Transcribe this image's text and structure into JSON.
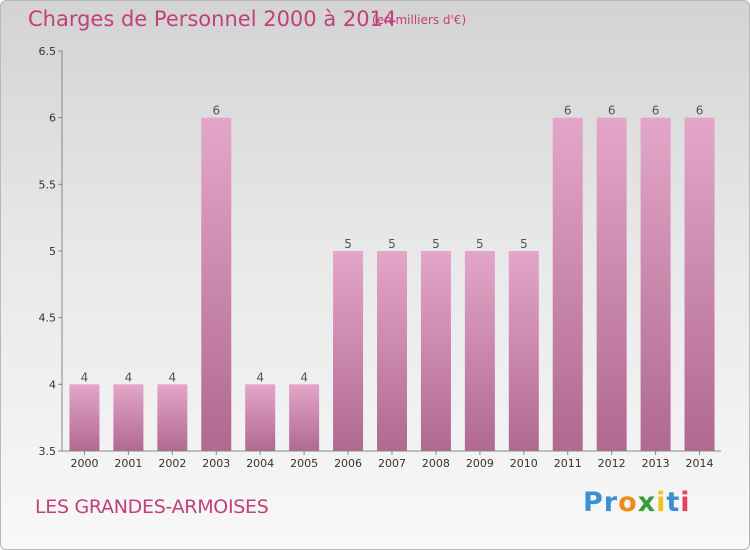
{
  "chart_data": {
    "type": "bar",
    "title": "Charges de Personnel 2000 à 2014",
    "subtitle": "(en milliers d'€)",
    "xlabel": "",
    "ylabel": "",
    "categories": [
      "2000",
      "2001",
      "2002",
      "2003",
      "2004",
      "2005",
      "2006",
      "2007",
      "2008",
      "2009",
      "2010",
      "2011",
      "2012",
      "2013",
      "2014"
    ],
    "values": [
      4,
      4,
      4,
      6,
      4,
      4,
      5,
      5,
      5,
      5,
      5,
      6,
      6,
      6,
      6
    ],
    "data_labels": [
      "4",
      "4",
      "4",
      "6",
      "4",
      "4",
      "5",
      "5",
      "5",
      "5",
      "5",
      "6",
      "6",
      "6",
      "6"
    ],
    "ylim": [
      3.5,
      6.5
    ],
    "yticks": [
      "3.5",
      "4",
      "4.5",
      "5",
      "5.5",
      "6",
      "6.5"
    ],
    "grid": false,
    "colors": {
      "bar_top": "#e3a6c9",
      "bar_bottom": "#b06990",
      "axis": "#888888",
      "text": "#555555"
    }
  },
  "footer": {
    "commune": "LES GRANDES-ARMOISES"
  },
  "logo": {
    "text": "Proxiti",
    "letters": [
      {
        "ch": "P",
        "color": "#3d8fd1"
      },
      {
        "ch": "r",
        "color": "#3d8fd1"
      },
      {
        "ch": "o",
        "color": "#f08c1e"
      },
      {
        "ch": "x",
        "color": "#3a9a3a"
      },
      {
        "ch": "i",
        "color": "#f0c41e"
      },
      {
        "ch": "t",
        "color": "#3d8fd1"
      },
      {
        "ch": "i",
        "color": "#e0445c"
      }
    ]
  }
}
